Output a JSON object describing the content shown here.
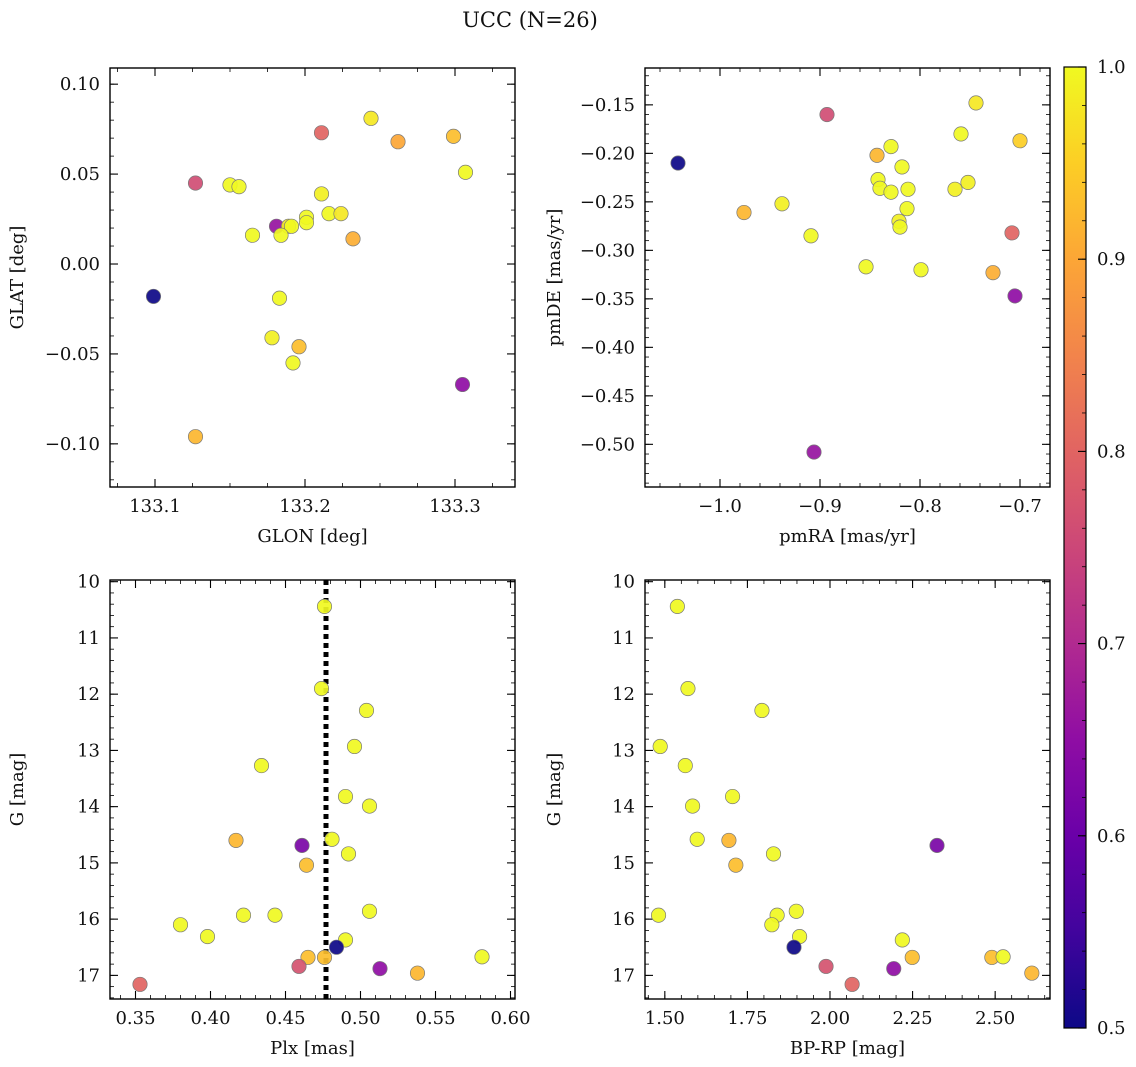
{
  "title": "UCC (N=26)",
  "colorbar": {
    "colormap": "plasma",
    "range": [
      0.5,
      1.0
    ],
    "ticks": [
      0.5,
      0.6,
      0.7,
      0.8,
      0.9,
      1.0
    ],
    "tick_labels": [
      "0.5",
      "0.6",
      "0.7",
      "0.8",
      "0.9",
      "1.0"
    ]
  },
  "chart_data": [
    {
      "type": "scatter",
      "id": "glon-glat",
      "xlabel": "GLON [deg]",
      "ylabel": "GLAT [deg]",
      "xlim": [
        133.07,
        133.34
      ],
      "ylim": [
        -0.124,
        0.109
      ],
      "y_inverted": false,
      "xticks": [
        133.1,
        133.2,
        133.3
      ],
      "xtick_labels": [
        "133.1",
        "133.2",
        "133.3"
      ],
      "yticks": [
        -0.1,
        -0.05,
        0.0,
        0.05,
        0.1
      ],
      "ytick_labels": [
        "−0.10",
        "−0.05",
        "0.00",
        "0.05",
        "0.10"
      ],
      "x_minor_step": 0.025,
      "y_minor_step": 0.01,
      "points": [
        {
          "x": 133.244,
          "y": 0.081,
          "c": 0.98
        },
        {
          "x": 133.211,
          "y": 0.073,
          "c": 0.8
        },
        {
          "x": 133.299,
          "y": 0.071,
          "c": 0.93
        },
        {
          "x": 133.262,
          "y": 0.068,
          "c": 0.9
        },
        {
          "x": 133.307,
          "y": 0.051,
          "c": 1.0
        },
        {
          "x": 133.127,
          "y": 0.045,
          "c": 0.76
        },
        {
          "x": 133.15,
          "y": 0.044,
          "c": 1.0
        },
        {
          "x": 133.156,
          "y": 0.043,
          "c": 1.0
        },
        {
          "x": 133.211,
          "y": 0.039,
          "c": 0.99
        },
        {
          "x": 133.216,
          "y": 0.028,
          "c": 1.0
        },
        {
          "x": 133.224,
          "y": 0.028,
          "c": 0.98
        },
        {
          "x": 133.201,
          "y": 0.026,
          "c": 1.0
        },
        {
          "x": 133.201,
          "y": 0.023,
          "c": 1.0
        },
        {
          "x": 133.181,
          "y": 0.021,
          "c": 0.66
        },
        {
          "x": 133.189,
          "y": 0.021,
          "c": 0.98
        },
        {
          "x": 133.191,
          "y": 0.021,
          "c": 1.0
        },
        {
          "x": 133.165,
          "y": 0.016,
          "c": 1.0
        },
        {
          "x": 133.184,
          "y": 0.016,
          "c": 1.0
        },
        {
          "x": 133.232,
          "y": 0.014,
          "c": 0.91
        },
        {
          "x": 133.099,
          "y": -0.018,
          "c": 0.5
        },
        {
          "x": 133.183,
          "y": -0.019,
          "c": 1.0
        },
        {
          "x": 133.178,
          "y": -0.041,
          "c": 0.99
        },
        {
          "x": 133.196,
          "y": -0.046,
          "c": 0.93
        },
        {
          "x": 133.192,
          "y": -0.055,
          "c": 1.0
        },
        {
          "x": 133.305,
          "y": -0.067,
          "c": 0.65
        },
        {
          "x": 133.127,
          "y": -0.096,
          "c": 0.92
        }
      ]
    },
    {
      "type": "scatter",
      "id": "pm",
      "xlabel": "pmRA [mas/yr]",
      "ylabel": "pmDE [mas/yr]",
      "xlim": [
        -1.075,
        -0.67
      ],
      "ylim": [
        -0.544,
        -0.112
      ],
      "y_inverted": false,
      "xticks": [
        -1.0,
        -0.9,
        -0.8,
        -0.7
      ],
      "xtick_labels": [
        "−1.0",
        "−0.9",
        "−0.8",
        "−0.7"
      ],
      "yticks": [
        -0.5,
        -0.45,
        -0.4,
        -0.35,
        -0.3,
        -0.25,
        -0.2,
        -0.15
      ],
      "ytick_labels": [
        "−0.50",
        "−0.45",
        "−0.40",
        "−0.35",
        "−0.30",
        "−0.25",
        "−0.20",
        "−0.15"
      ],
      "x_minor_step": 0.02,
      "y_minor_step": 0.01,
      "points": [
        {
          "x": -0.744,
          "y": -0.148,
          "c": 0.98
        },
        {
          "x": -0.893,
          "y": -0.16,
          "c": 0.76
        },
        {
          "x": -0.7,
          "y": -0.187,
          "c": 0.95
        },
        {
          "x": -0.759,
          "y": -0.18,
          "c": 1.0
        },
        {
          "x": -0.829,
          "y": -0.193,
          "c": 1.0
        },
        {
          "x": -0.843,
          "y": -0.202,
          "c": 0.92
        },
        {
          "x": -1.042,
          "y": -0.21,
          "c": 0.5
        },
        {
          "x": -0.818,
          "y": -0.214,
          "c": 1.0
        },
        {
          "x": -0.842,
          "y": -0.227,
          "c": 1.0
        },
        {
          "x": -0.752,
          "y": -0.23,
          "c": 0.99
        },
        {
          "x": -0.84,
          "y": -0.236,
          "c": 1.0
        },
        {
          "x": -0.812,
          "y": -0.237,
          "c": 1.0
        },
        {
          "x": -0.765,
          "y": -0.237,
          "c": 0.99
        },
        {
          "x": -0.829,
          "y": -0.24,
          "c": 1.0
        },
        {
          "x": -0.938,
          "y": -0.252,
          "c": 0.99
        },
        {
          "x": -0.813,
          "y": -0.257,
          "c": 1.0
        },
        {
          "x": -0.976,
          "y": -0.261,
          "c": 0.92
        },
        {
          "x": -0.821,
          "y": -0.27,
          "c": 0.99
        },
        {
          "x": -0.82,
          "y": -0.276,
          "c": 1.0
        },
        {
          "x": -0.708,
          "y": -0.282,
          "c": 0.8
        },
        {
          "x": -0.909,
          "y": -0.285,
          "c": 1.0
        },
        {
          "x": -0.854,
          "y": -0.317,
          "c": 1.0
        },
        {
          "x": -0.799,
          "y": -0.32,
          "c": 1.0
        },
        {
          "x": -0.727,
          "y": -0.323,
          "c": 0.91
        },
        {
          "x": -0.705,
          "y": -0.347,
          "c": 0.65
        },
        {
          "x": -0.906,
          "y": -0.508,
          "c": 0.66
        }
      ]
    },
    {
      "type": "scatter",
      "id": "plx-g",
      "xlabel": "Plx [mas]",
      "ylabel": "G [mag]",
      "xlim": [
        0.333,
        0.603
      ],
      "ylim": [
        17.42,
        9.97
      ],
      "y_inverted": true,
      "xticks": [
        0.35,
        0.4,
        0.45,
        0.5,
        0.55,
        0.6
      ],
      "xtick_labels": [
        "0.35",
        "0.40",
        "0.45",
        "0.50",
        "0.55",
        "0.60"
      ],
      "yticks": [
        10,
        11,
        12,
        13,
        14,
        15,
        16,
        17
      ],
      "ytick_labels": [
        "10",
        "11",
        "12",
        "13",
        "14",
        "15",
        "16",
        "17"
      ],
      "x_minor_step": 0.01,
      "y_minor_step": 0.2,
      "vline": {
        "x": 0.477,
        "style": "dotted"
      },
      "points": [
        {
          "x": 0.476,
          "y": 10.44,
          "c": 1.0
        },
        {
          "x": 0.474,
          "y": 11.9,
          "c": 1.0
        },
        {
          "x": 0.504,
          "y": 12.29,
          "c": 1.0
        },
        {
          "x": 0.496,
          "y": 12.93,
          "c": 1.0
        },
        {
          "x": 0.434,
          "y": 13.27,
          "c": 1.0
        },
        {
          "x": 0.49,
          "y": 13.82,
          "c": 1.0
        },
        {
          "x": 0.506,
          "y": 13.99,
          "c": 1.0
        },
        {
          "x": 0.417,
          "y": 14.6,
          "c": 0.92
        },
        {
          "x": 0.481,
          "y": 14.58,
          "c": 1.0
        },
        {
          "x": 0.461,
          "y": 14.69,
          "c": 0.62
        },
        {
          "x": 0.492,
          "y": 14.84,
          "c": 1.0
        },
        {
          "x": 0.464,
          "y": 15.04,
          "c": 0.93
        },
        {
          "x": 0.506,
          "y": 15.86,
          "c": 1.0
        },
        {
          "x": 0.422,
          "y": 15.93,
          "c": 1.0
        },
        {
          "x": 0.443,
          "y": 15.93,
          "c": 1.0
        },
        {
          "x": 0.38,
          "y": 16.1,
          "c": 1.0
        },
        {
          "x": 0.398,
          "y": 16.31,
          "c": 1.0
        },
        {
          "x": 0.49,
          "y": 16.37,
          "c": 1.0
        },
        {
          "x": 0.484,
          "y": 16.5,
          "c": 0.5
        },
        {
          "x": 0.465,
          "y": 16.68,
          "c": 0.93
        },
        {
          "x": 0.476,
          "y": 16.68,
          "c": 0.93
        },
        {
          "x": 0.581,
          "y": 16.67,
          "c": 1.0
        },
        {
          "x": 0.459,
          "y": 16.84,
          "c": 0.77
        },
        {
          "x": 0.513,
          "y": 16.88,
          "c": 0.65
        },
        {
          "x": 0.538,
          "y": 16.96,
          "c": 0.92
        },
        {
          "x": 0.353,
          "y": 17.16,
          "c": 0.8
        }
      ]
    },
    {
      "type": "scatter",
      "id": "color-g",
      "xlabel": "BP-RP [mag]",
      "ylabel": "G [mag]",
      "xlim": [
        1.44,
        2.666
      ],
      "ylim": [
        17.42,
        9.97
      ],
      "y_inverted": true,
      "xticks": [
        1.5,
        1.75,
        2.0,
        2.25,
        2.5
      ],
      "xtick_labels": [
        "1.50",
        "1.75",
        "2.00",
        "2.25",
        "2.50"
      ],
      "yticks": [
        10,
        11,
        12,
        13,
        14,
        15,
        16,
        17
      ],
      "ytick_labels": [
        "10",
        "11",
        "12",
        "13",
        "14",
        "15",
        "16",
        "17"
      ],
      "x_minor_step": 0.05,
      "y_minor_step": 0.2,
      "points": [
        {
          "x": 1.538,
          "y": 10.44,
          "c": 1.0
        },
        {
          "x": 1.57,
          "y": 11.9,
          "c": 1.0
        },
        {
          "x": 1.794,
          "y": 12.29,
          "c": 1.0
        },
        {
          "x": 1.486,
          "y": 12.93,
          "c": 1.0
        },
        {
          "x": 1.562,
          "y": 13.27,
          "c": 1.0
        },
        {
          "x": 1.705,
          "y": 13.82,
          "c": 1.0
        },
        {
          "x": 1.584,
          "y": 13.99,
          "c": 1.0
        },
        {
          "x": 1.694,
          "y": 14.6,
          "c": 0.92
        },
        {
          "x": 1.598,
          "y": 14.58,
          "c": 1.0
        },
        {
          "x": 2.324,
          "y": 14.69,
          "c": 0.62
        },
        {
          "x": 1.829,
          "y": 14.84,
          "c": 1.0
        },
        {
          "x": 1.715,
          "y": 15.04,
          "c": 0.93
        },
        {
          "x": 1.898,
          "y": 15.86,
          "c": 1.0
        },
        {
          "x": 1.481,
          "y": 15.93,
          "c": 1.0
        },
        {
          "x": 1.84,
          "y": 15.93,
          "c": 1.0
        },
        {
          "x": 1.824,
          "y": 16.1,
          "c": 1.0
        },
        {
          "x": 1.908,
          "y": 16.31,
          "c": 1.0
        },
        {
          "x": 2.219,
          "y": 16.37,
          "c": 1.0
        },
        {
          "x": 1.891,
          "y": 16.5,
          "c": 0.5
        },
        {
          "x": 2.249,
          "y": 16.68,
          "c": 0.93
        },
        {
          "x": 2.49,
          "y": 16.68,
          "c": 0.93
        },
        {
          "x": 2.524,
          "y": 16.67,
          "c": 1.0
        },
        {
          "x": 1.988,
          "y": 16.84,
          "c": 0.77
        },
        {
          "x": 2.193,
          "y": 16.88,
          "c": 0.65
        },
        {
          "x": 2.611,
          "y": 16.96,
          "c": 0.92
        },
        {
          "x": 2.067,
          "y": 17.16,
          "c": 0.8
        }
      ]
    }
  ]
}
